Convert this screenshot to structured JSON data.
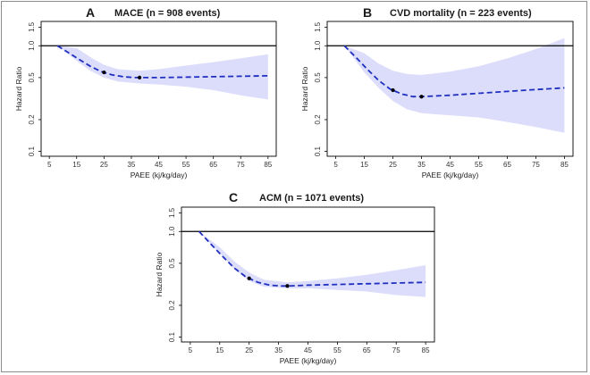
{
  "figure_title": "",
  "chart_data": [
    {
      "type": "line",
      "panel_label": "A",
      "title": "MACE (n = 908 events)",
      "xlabel": "PAEE (kj/kg/day)",
      "ylabel": "Hazard Ratio",
      "xticks": [
        "5",
        "15",
        "25",
        "35",
        "45",
        "55",
        "65",
        "75",
        "85"
      ],
      "yticks": [
        "0.1",
        "0.2",
        "0.5",
        "1.0",
        "1.5"
      ],
      "xlim": [
        2,
        88
      ],
      "ylim": [
        0.09,
        1.7
      ],
      "yscale": "log",
      "reference_line": 1.0,
      "series": [
        {
          "name": "Hazard ratio",
          "x": [
            8,
            12,
            16,
            20,
            24,
            28,
            32,
            36,
            38,
            45,
            55,
            65,
            75,
            85
          ],
          "y": [
            1.0,
            0.86,
            0.74,
            0.64,
            0.57,
            0.53,
            0.51,
            0.5,
            0.5,
            0.5,
            0.505,
            0.51,
            0.515,
            0.52
          ]
        },
        {
          "name": "CI lower",
          "x": [
            8,
            15,
            20,
            25,
            30,
            38,
            45,
            55,
            65,
            75,
            85
          ],
          "y": [
            1.0,
            0.72,
            0.58,
            0.5,
            0.46,
            0.44,
            0.43,
            0.41,
            0.38,
            0.34,
            0.31
          ]
        },
        {
          "name": "CI upper",
          "x": [
            8,
            15,
            20,
            25,
            30,
            38,
            45,
            55,
            65,
            75,
            85
          ],
          "y": [
            1.0,
            0.95,
            0.78,
            0.66,
            0.6,
            0.58,
            0.6,
            0.65,
            0.7,
            0.76,
            0.83
          ]
        }
      ],
      "markers": [
        {
          "x": 25,
          "y": 0.56
        },
        {
          "x": 38,
          "y": 0.5
        }
      ]
    },
    {
      "type": "line",
      "panel_label": "B",
      "title": "CVD mortality (n = 223 events)",
      "xlabel": "PAEE (kj/kg/day)",
      "ylabel": "Hazard Ratio",
      "xticks": [
        "5",
        "15",
        "25",
        "35",
        "45",
        "55",
        "65",
        "75",
        "85"
      ],
      "yticks": [
        "0.1",
        "0.2",
        "0.5",
        "1.0",
        "1.5"
      ],
      "xlim": [
        2,
        88
      ],
      "ylim": [
        0.09,
        1.7
      ],
      "yscale": "log",
      "reference_line": 1.0,
      "series": [
        {
          "name": "Hazard ratio",
          "x": [
            8,
            12,
            16,
            20,
            24,
            28,
            32,
            35,
            45,
            55,
            65,
            75,
            85
          ],
          "y": [
            1.0,
            0.78,
            0.6,
            0.47,
            0.39,
            0.35,
            0.33,
            0.33,
            0.34,
            0.355,
            0.37,
            0.385,
            0.4
          ]
        },
        {
          "name": "CI lower",
          "x": [
            8,
            15,
            20,
            25,
            30,
            35,
            45,
            55,
            65,
            75,
            85
          ],
          "y": [
            1.0,
            0.56,
            0.4,
            0.3,
            0.25,
            0.23,
            0.22,
            0.21,
            0.19,
            0.17,
            0.15
          ]
        },
        {
          "name": "CI upper",
          "x": [
            8,
            15,
            20,
            25,
            30,
            35,
            45,
            55,
            65,
            75,
            85
          ],
          "y": [
            1.0,
            0.85,
            0.68,
            0.58,
            0.54,
            0.53,
            0.57,
            0.64,
            0.76,
            0.93,
            1.18
          ]
        }
      ],
      "markers": [
        {
          "x": 25,
          "y": 0.38
        },
        {
          "x": 35,
          "y": 0.33
        }
      ]
    },
    {
      "type": "line",
      "panel_label": "C",
      "title": "ACM (n = 1071 events)",
      "xlabel": "PAEE (kj/kg/day)",
      "ylabel": "Hazard Ratio",
      "xticks": [
        "5",
        "15",
        "25",
        "35",
        "45",
        "55",
        "65",
        "75",
        "85"
      ],
      "yticks": [
        "0.1",
        "0.2",
        "0.5",
        "1.0",
        "1.5"
      ],
      "xlim": [
        2,
        88
      ],
      "ylim": [
        0.09,
        1.7
      ],
      "yscale": "log",
      "reference_line": 1.0,
      "series": [
        {
          "name": "Hazard ratio",
          "x": [
            8,
            12,
            16,
            20,
            24,
            28,
            32,
            36,
            38,
            45,
            55,
            65,
            75,
            85
          ],
          "y": [
            1.0,
            0.76,
            0.58,
            0.45,
            0.37,
            0.33,
            0.31,
            0.305,
            0.305,
            0.31,
            0.315,
            0.32,
            0.325,
            0.33
          ]
        },
        {
          "name": "CI lower",
          "x": [
            8,
            15,
            20,
            25,
            30,
            38,
            45,
            55,
            65,
            75,
            85
          ],
          "y": [
            1.0,
            0.62,
            0.44,
            0.34,
            0.3,
            0.29,
            0.29,
            0.28,
            0.27,
            0.25,
            0.24
          ]
        },
        {
          "name": "CI upper",
          "x": [
            8,
            15,
            20,
            25,
            30,
            38,
            45,
            55,
            65,
            75,
            85
          ],
          "y": [
            1.0,
            0.71,
            0.52,
            0.41,
            0.35,
            0.33,
            0.34,
            0.36,
            0.39,
            0.43,
            0.48
          ]
        }
      ],
      "markers": [
        {
          "x": 25,
          "y": 0.36
        },
        {
          "x": 38,
          "y": 0.305
        }
      ]
    }
  ],
  "colors": {
    "line": "#1f2fc0",
    "band": "#dcdcfb",
    "reference": "#000000",
    "marker": "#000000"
  }
}
